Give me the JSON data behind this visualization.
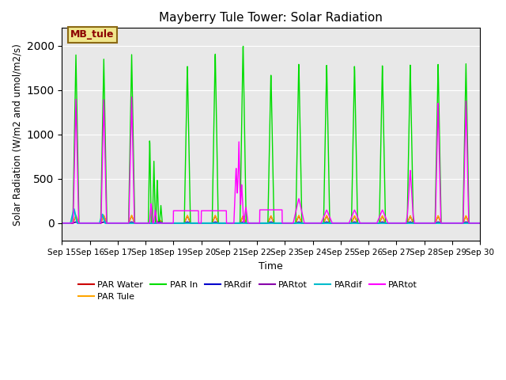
{
  "title": "Mayberry Tule Tower: Solar Radiation",
  "xlabel": "Time",
  "ylabel": "Solar Radiation (W/m2 and umol/m2/s)",
  "ylim": [
    -200,
    2200
  ],
  "plot_bg": "#e8e8e8",
  "fig_bg": "#ffffff",
  "grid_color": "#ffffff",
  "colors": {
    "par_water": "#cc0000",
    "par_tule": "#ffa500",
    "par_in": "#00dd00",
    "pardif_blue": "#0000cc",
    "partot_purple": "#8800aa",
    "pardif_cyan": "#00bbcc",
    "partot_mag": "#ff00ff"
  },
  "legend_items": [
    {
      "label": "PAR Water",
      "color": "#cc0000"
    },
    {
      "label": "PAR Tule",
      "color": "#ffa500"
    },
    {
      "label": "PAR In",
      "color": "#00dd00"
    },
    {
      "label": "PARdif",
      "color": "#0000cc"
    },
    {
      "label": "PARtot",
      "color": "#8800aa"
    },
    {
      "label": "PARdif",
      "color": "#00bbcc"
    },
    {
      "label": "PARtot",
      "color": "#ff00ff"
    }
  ],
  "n_days": 15,
  "ppd": 144
}
